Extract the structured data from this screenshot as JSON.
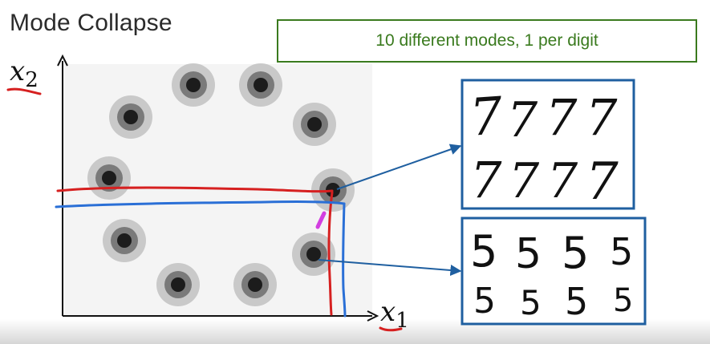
{
  "title": "Mode Collapse",
  "callout": "10 different modes, 1 per digit",
  "axes": {
    "x_symbol": "x",
    "x_subscript": "1",
    "y_symbol": "x",
    "y_subscript": "2"
  },
  "samples": {
    "sevens": {
      "row1": [
        "7",
        "7",
        "7",
        "7"
      ],
      "row2": [
        "7",
        "7",
        "7",
        "7"
      ]
    },
    "fives": {
      "row1": [
        "5",
        "5",
        "5",
        "5"
      ],
      "row2": [
        "5",
        "5",
        "5",
        "5"
      ]
    }
  },
  "colors": {
    "callout_green": "#3a7a1e",
    "box_blue": "#1f5fa0",
    "red_annotation": "#d62020",
    "blue_annotation": "#2a6fd6",
    "magenta_annotation": "#d23fe0"
  }
}
